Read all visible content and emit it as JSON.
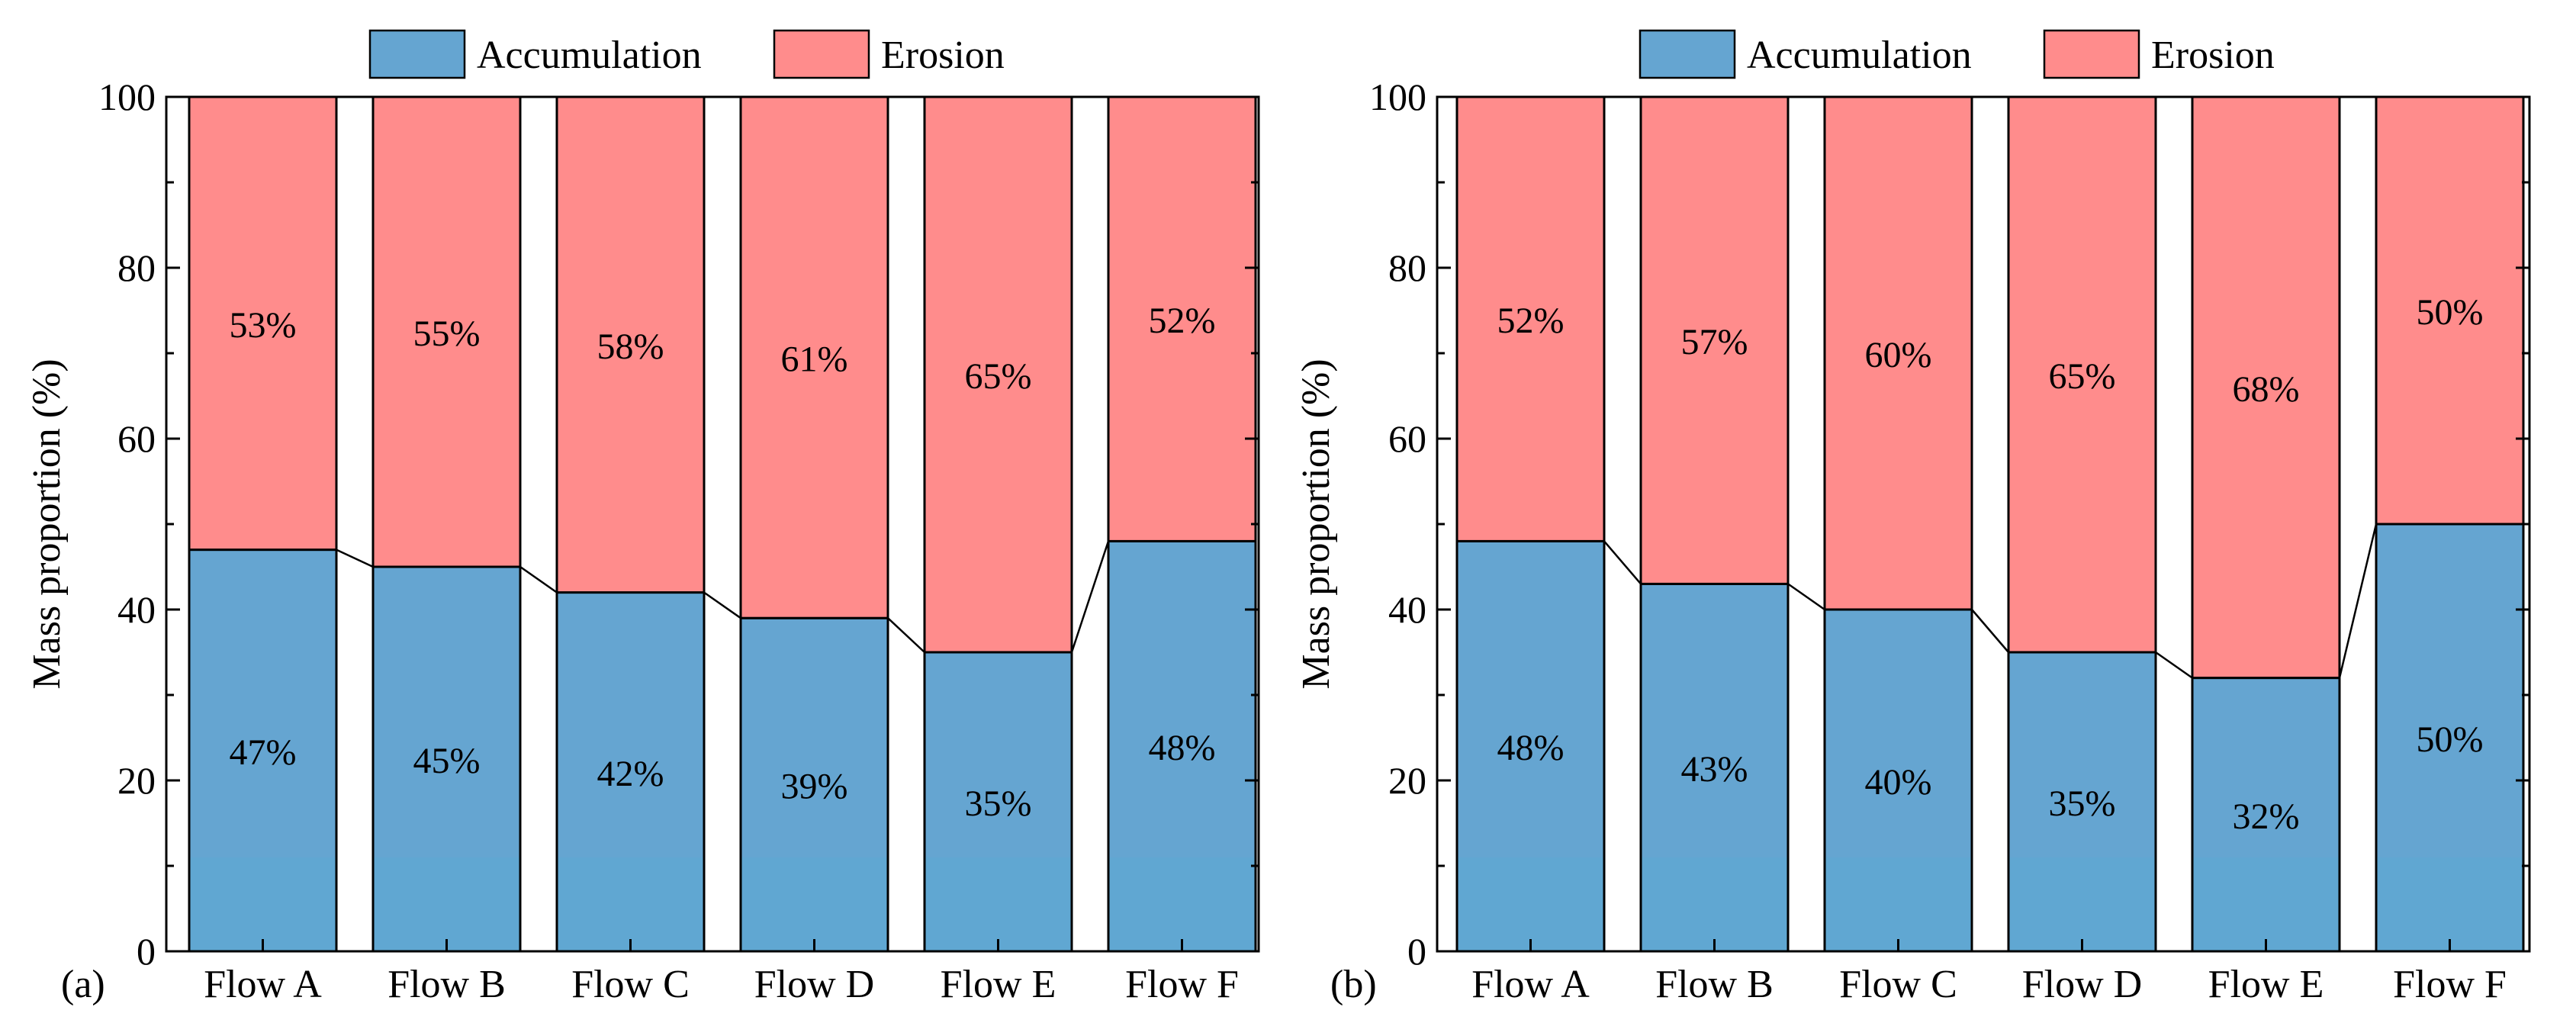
{
  "colors": {
    "accumulation": "#65a5d1",
    "erosion": "#ff8c8c",
    "bottom_band": "#5daad3",
    "axis": "#000000"
  },
  "chart_data": [
    {
      "type": "bar",
      "stacked": true,
      "panel_label": "(a)",
      "categories": [
        "Flow A",
        "Flow B",
        "Flow C",
        "Flow D",
        "Flow E",
        "Flow F"
      ],
      "series": [
        {
          "name": "Accumulation",
          "values": [
            47,
            45,
            42,
            39,
            35,
            48
          ],
          "labels": [
            "47%",
            "45%",
            "42%",
            "39%",
            "35%",
            "48%"
          ]
        },
        {
          "name": "Erosion",
          "values": [
            53,
            55,
            58,
            61,
            65,
            52
          ],
          "labels": [
            "53%",
            "55%",
            "58%",
            "61%",
            "65%",
            "52%"
          ]
        }
      ],
      "xlabel": "",
      "ylabel": "Mass proportion (%)",
      "ylim": [
        0,
        100
      ],
      "yticks": [
        "0",
        "20",
        "40",
        "60",
        "80",
        "100"
      ],
      "legend": [
        "Accumulation",
        "Erosion"
      ],
      "legend_position": "top-center",
      "grid": false
    },
    {
      "type": "bar",
      "stacked": true,
      "panel_label": "(b)",
      "categories": [
        "Flow A",
        "Flow B",
        "Flow C",
        "Flow D",
        "Flow E",
        "Flow F"
      ],
      "series": [
        {
          "name": "Accumulation",
          "values": [
            48,
            43,
            40,
            35,
            32,
            50
          ],
          "labels": [
            "48%",
            "43%",
            "40%",
            "35%",
            "32%",
            "50%"
          ]
        },
        {
          "name": "Erosion",
          "values": [
            52,
            57,
            60,
            65,
            68,
            50
          ],
          "labels": [
            "52%",
            "57%",
            "60%",
            "65%",
            "68%",
            "50%"
          ]
        }
      ],
      "xlabel": "",
      "ylabel": "Mass proportion (%)",
      "ylim": [
        0,
        100
      ],
      "yticks": [
        "0",
        "20",
        "40",
        "60",
        "80",
        "100"
      ],
      "legend": [
        "Accumulation",
        "Erosion"
      ],
      "legend_position": "top-center",
      "grid": false
    }
  ]
}
